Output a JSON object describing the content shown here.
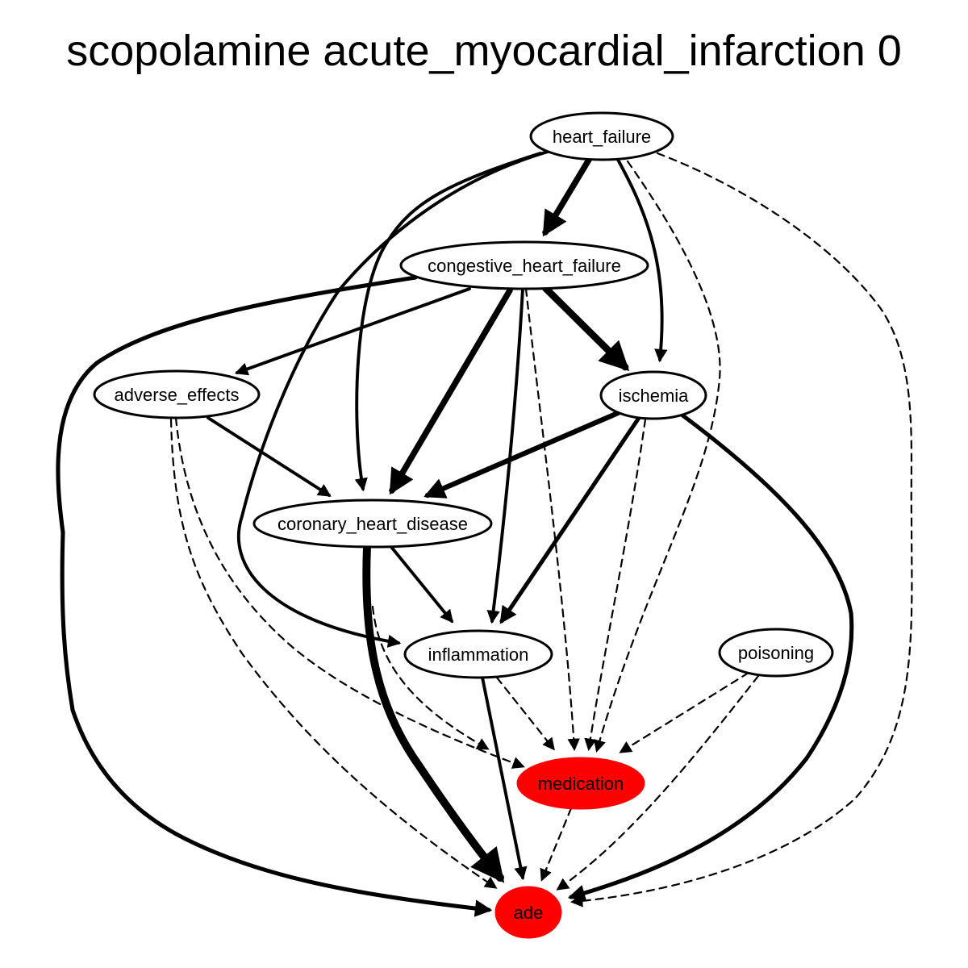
{
  "title": "scopolamine acute_myocardial_infarction 0",
  "colors": {
    "highlight_fill": "#ff0000",
    "default_fill": "#ffffff",
    "stroke": "#000000"
  },
  "nodes": [
    {
      "id": "heart_failure",
      "label": "heart_failure",
      "highlight": false
    },
    {
      "id": "congestive_heart_failure",
      "label": "congestive_heart_failure",
      "highlight": false
    },
    {
      "id": "adverse_effects",
      "label": "adverse_effects",
      "highlight": false
    },
    {
      "id": "ischemia",
      "label": "ischemia",
      "highlight": false
    },
    {
      "id": "coronary_heart_disease",
      "label": "coronary_heart_disease",
      "highlight": false
    },
    {
      "id": "inflammation",
      "label": "inflammation",
      "highlight": false
    },
    {
      "id": "poisoning",
      "label": "poisoning",
      "highlight": false
    },
    {
      "id": "medication",
      "label": "medication",
      "highlight": true
    },
    {
      "id": "ade",
      "label": "ade",
      "highlight": true
    }
  ],
  "edges": [
    {
      "from": "heart_failure",
      "to": "congestive_heart_failure",
      "weight": 5,
      "style": "solid"
    },
    {
      "from": "heart_failure",
      "to": "ischemia",
      "weight": 2,
      "style": "solid"
    },
    {
      "from": "heart_failure",
      "to": "coronary_heart_disease",
      "weight": 2,
      "style": "solid"
    },
    {
      "from": "heart_failure",
      "to": "inflammation",
      "weight": 2,
      "style": "solid"
    },
    {
      "from": "heart_failure",
      "to": "medication",
      "weight": 1,
      "style": "dashed"
    },
    {
      "from": "heart_failure",
      "to": "ade",
      "weight": 1,
      "style": "dashed"
    },
    {
      "from": "congestive_heart_failure",
      "to": "adverse_effects",
      "weight": 2,
      "style": "solid"
    },
    {
      "from": "congestive_heart_failure",
      "to": "coronary_heart_disease",
      "weight": 5,
      "style": "solid"
    },
    {
      "from": "congestive_heart_failure",
      "to": "ischemia",
      "weight": 6,
      "style": "solid"
    },
    {
      "from": "congestive_heart_failure",
      "to": "inflammation",
      "weight": 2,
      "style": "solid"
    },
    {
      "from": "congestive_heart_failure",
      "to": "medication",
      "weight": 1,
      "style": "dashed"
    },
    {
      "from": "congestive_heart_failure",
      "to": "ade",
      "weight": 3,
      "style": "solid"
    },
    {
      "from": "adverse_effects",
      "to": "coronary_heart_disease",
      "weight": 2,
      "style": "solid"
    },
    {
      "from": "adverse_effects",
      "to": "medication",
      "weight": 1,
      "style": "dashed"
    },
    {
      "from": "adverse_effects",
      "to": "ade",
      "weight": 1,
      "style": "dashed"
    },
    {
      "from": "ischemia",
      "to": "coronary_heart_disease",
      "weight": 4,
      "style": "solid"
    },
    {
      "from": "ischemia",
      "to": "inflammation",
      "weight": 3,
      "style": "solid"
    },
    {
      "from": "ischemia",
      "to": "medication",
      "weight": 1,
      "style": "dashed"
    },
    {
      "from": "ischemia",
      "to": "ade",
      "weight": 3,
      "style": "solid"
    },
    {
      "from": "coronary_heart_disease",
      "to": "inflammation",
      "weight": 2,
      "style": "solid"
    },
    {
      "from": "coronary_heart_disease",
      "to": "ade",
      "weight": 7,
      "style": "solid"
    },
    {
      "from": "coronary_heart_disease",
      "to": "medication",
      "weight": 1,
      "style": "dashed"
    },
    {
      "from": "inflammation",
      "to": "ade",
      "weight": 2,
      "style": "solid"
    },
    {
      "from": "inflammation",
      "to": "medication",
      "weight": 1,
      "style": "dashed"
    },
    {
      "from": "poisoning",
      "to": "medication",
      "weight": 1,
      "style": "dashed"
    },
    {
      "from": "poisoning",
      "to": "ade",
      "weight": 1,
      "style": "dashed"
    },
    {
      "from": "medication",
      "to": "ade",
      "weight": 1,
      "style": "dashed"
    }
  ]
}
